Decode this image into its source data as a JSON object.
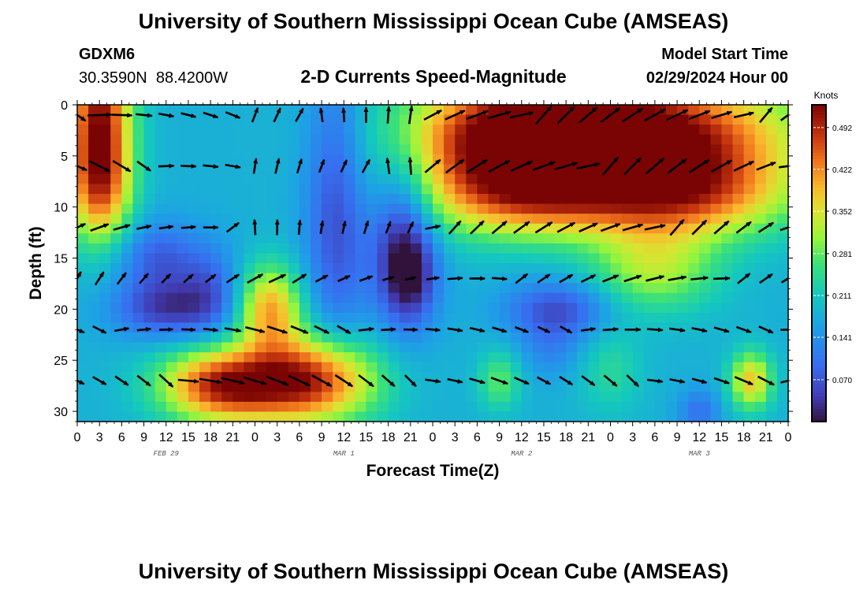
{
  "title": "University of Southern Mississippi Ocean Cube (AMSEAS)",
  "footer_title": "University of Southern Mississippi Ocean Cube (AMSEAS)",
  "station": {
    "id": "GDXM6",
    "coords": "30.3590N  88.4200W"
  },
  "model_start": {
    "label": "Model Start Time",
    "value": "02/29/2024 Hour 00"
  },
  "chart_data": {
    "type": "heatmap",
    "title": "2-D Currents Speed-Magnitude",
    "xlabel": "Forecast Time(Z)",
    "ylabel": "Depth (ft)",
    "x_range_hours": [
      0,
      96
    ],
    "y_range_ft": [
      0,
      31
    ],
    "x_ticks": {
      "hours": [
        0,
        3,
        6,
        9,
        12,
        15,
        18,
        21,
        24,
        27,
        30,
        33,
        36,
        39,
        42,
        45,
        48,
        51,
        54,
        57,
        60,
        63,
        66,
        69,
        72,
        75,
        78,
        81,
        84,
        87,
        90,
        93,
        96
      ],
      "labels": [
        "0",
        "3",
        "6",
        "9",
        "12",
        "15",
        "18",
        "21",
        "0",
        "3",
        "6",
        "9",
        "12",
        "15",
        "18",
        "21",
        "0",
        "3",
        "6",
        "9",
        "12",
        "15",
        "18",
        "21",
        "0",
        "3",
        "6",
        "9",
        "12",
        "15",
        "18",
        "21",
        "0"
      ]
    },
    "y_ticks": [
      0,
      5,
      10,
      15,
      20,
      25,
      30
    ],
    "date_labels": [
      {
        "hour": 12,
        "text": "FEB 29"
      },
      {
        "hour": 36,
        "text": "MAR 1"
      },
      {
        "hour": 60,
        "text": "MAR 2"
      },
      {
        "hour": 84,
        "text": "MAR 3"
      }
    ],
    "colorbar": {
      "unit": "Knots",
      "range": [
        0.0,
        0.53
      ],
      "ticks": [
        0.07,
        0.141,
        0.211,
        0.281,
        0.352,
        0.422,
        0.492
      ],
      "tick_labels": [
        "0.070",
        "0.141",
        "0.211",
        "0.281",
        "0.352",
        "0.422",
        "0.492"
      ]
    },
    "speed_blobs": [
      {
        "t": 3,
        "d": 0,
        "st": 3,
        "sd": 5,
        "v": 0.3
      },
      {
        "t": 3,
        "d": 8,
        "st": 3,
        "sd": 4,
        "v": 0.25
      },
      {
        "t": 11,
        "d": 15,
        "st": 4,
        "sd": 2.5,
        "v": -0.1
      },
      {
        "t": 12,
        "d": 20,
        "st": 5,
        "sd": 2,
        "v": -0.13
      },
      {
        "t": 18,
        "d": 18,
        "st": 3,
        "sd": 3,
        "v": -0.08
      },
      {
        "t": 20,
        "d": 27.5,
        "st": 6,
        "sd": 2.5,
        "v": 0.32
      },
      {
        "t": 32,
        "d": 27,
        "st": 6,
        "sd": 3,
        "v": 0.3
      },
      {
        "t": 26,
        "d": 20,
        "st": 3,
        "sd": 3,
        "v": 0.22
      },
      {
        "t": 35,
        "d": 10,
        "st": 3,
        "sd": 10,
        "v": -0.12
      },
      {
        "t": 44,
        "d": 13,
        "st": 3,
        "sd": 6,
        "v": -0.15
      },
      {
        "t": 45,
        "d": 17,
        "st": 2.5,
        "sd": 3,
        "v": -0.1
      },
      {
        "t": 60,
        "d": 3,
        "st": 11,
        "sd": 4,
        "v": 0.32
      },
      {
        "t": 77,
        "d": 3,
        "st": 14,
        "sd": 4,
        "v": 0.34
      },
      {
        "t": 82,
        "d": 9,
        "st": 10,
        "sd": 3,
        "v": 0.22
      },
      {
        "t": 60,
        "d": 9,
        "st": 10,
        "sd": 3,
        "v": 0.2
      },
      {
        "t": 65,
        "d": 20,
        "st": 5,
        "sd": 2,
        "v": -0.12
      },
      {
        "t": 78,
        "d": 16,
        "st": 6,
        "sd": 3,
        "v": 0.14
      },
      {
        "t": 57,
        "d": 27,
        "st": 2,
        "sd": 2,
        "v": 0.1
      },
      {
        "t": 72,
        "d": 26,
        "st": 3,
        "sd": 3,
        "v": 0.06
      },
      {
        "t": 91,
        "d": 27,
        "st": 2,
        "sd": 2,
        "v": 0.2
      },
      {
        "t": 84,
        "d": 30,
        "st": 2,
        "sd": 1.5,
        "v": -0.08
      },
      {
        "t": 64,
        "d": 24,
        "st": 3,
        "sd": 2,
        "v": -0.05
      }
    ],
    "vector_field": {
      "times": [
        0,
        3,
        6,
        9,
        12,
        15,
        18,
        21,
        24,
        27,
        30,
        33,
        36,
        39,
        42,
        45,
        48,
        51,
        54,
        57,
        60,
        63,
        66,
        69,
        72,
        75,
        78,
        81,
        84,
        87,
        90,
        93,
        96
      ],
      "depths": [
        1,
        6,
        12,
        17,
        22,
        27
      ]
    },
    "vector_direction_regimes": [
      {
        "t0": 0,
        "t1": 24,
        "dmax": 7,
        "deg": -15
      },
      {
        "t0": 0,
        "t1": 24,
        "dmin": 7,
        "dmax": 14,
        "deg": 20
      },
      {
        "t0": 24,
        "t1": 48,
        "dmax": 14,
        "deg": 80
      },
      {
        "t0": 48,
        "t1": 96,
        "dmax": 14,
        "deg": 30
      },
      {
        "t0": 0,
        "t1": 30,
        "dmin": 14,
        "dmax": 19,
        "deg": 45
      },
      {
        "t0": 30,
        "t1": 60,
        "dmin": 14,
        "dmax": 19,
        "deg": 15
      },
      {
        "t0": 60,
        "t1": 96,
        "dmin": 14,
        "dmax": 19,
        "deg": 20
      },
      {
        "t0": 0,
        "t1": 96,
        "dmin": 19,
        "dmax": 24,
        "deg": -10
      },
      {
        "t0": 0,
        "t1": 96,
        "dmin": 24,
        "dmax": 31,
        "deg": -25
      }
    ]
  }
}
